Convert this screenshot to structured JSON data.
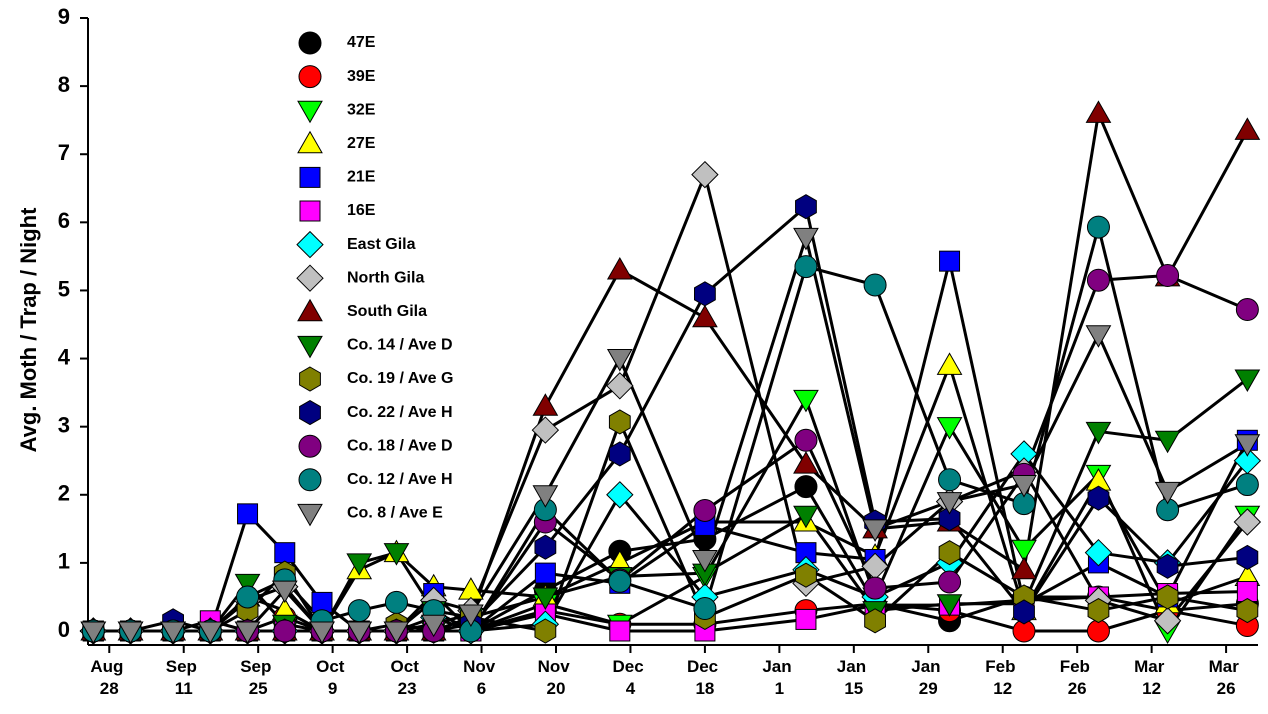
{
  "chart_data": {
    "type": "line",
    "ylabel": "Avg. Moth / Trap / Night",
    "x": [
      -3,
      4,
      12,
      19,
      26,
      33,
      40,
      47,
      54,
      61,
      68,
      82,
      96,
      112,
      131,
      144,
      158,
      172,
      186,
      199,
      214
    ],
    "xlim": [
      -4,
      216
    ],
    "xticks": [
      {
        "value": 0,
        "label": "Aug 28"
      },
      {
        "value": 14,
        "label": "Sep 11"
      },
      {
        "value": 28,
        "label": "Sep 25"
      },
      {
        "value": 42,
        "label": "Oct 9"
      },
      {
        "value": 56,
        "label": "Oct 23"
      },
      {
        "value": 70,
        "label": "Nov 6"
      },
      {
        "value": 84,
        "label": "Nov 20"
      },
      {
        "value": 98,
        "label": "Dec 4"
      },
      {
        "value": 112,
        "label": "Dec 18"
      },
      {
        "value": 126,
        "label": "Jan 1"
      },
      {
        "value": 140,
        "label": "Jan 15"
      },
      {
        "value": 154,
        "label": "Jan 29"
      },
      {
        "value": 168,
        "label": "Feb 12"
      },
      {
        "value": 182,
        "label": "Feb 26"
      },
      {
        "value": 196,
        "label": "Mar 12"
      },
      {
        "value": 210,
        "label": "Mar 26"
      }
    ],
    "ylim": [
      0,
      9
    ],
    "yticks": [
      0,
      1,
      2,
      3,
      4,
      5,
      6,
      7,
      8,
      9
    ],
    "line_color": "#000000",
    "series": [
      {
        "name": "47E",
        "color": "#000000",
        "marker": "circle",
        "values": [
          0,
          0,
          0,
          0,
          0,
          0,
          0,
          0,
          0,
          0,
          0,
          0.6,
          1.17,
          1.35,
          2.12,
          0.4,
          0.15,
          0.5,
          0.5,
          0.3,
          0.4
        ]
      },
      {
        "name": "39E",
        "color": "#ff0000",
        "marker": "circle",
        "values": [
          0,
          0,
          0,
          0,
          0,
          0.2,
          0,
          0,
          0,
          0,
          0,
          0.3,
          0.1,
          0.1,
          0.3,
          0.4,
          0.3,
          0,
          0,
          0.3,
          0.08
        ]
      },
      {
        "name": "32E",
        "color": "#00ff00",
        "marker": "triangle-down",
        "values": [
          0,
          0,
          0,
          0,
          0,
          0,
          0,
          0,
          0,
          0,
          0,
          0.4,
          0.1,
          0.8,
          3.4,
          0.5,
          3.0,
          1.2,
          2.3,
          0,
          1.7
        ]
      },
      {
        "name": "27E",
        "color": "#ffff00",
        "marker": "triangle-up",
        "values": [
          0,
          0,
          0,
          0,
          0.5,
          0.3,
          0,
          0.9,
          1.15,
          0.65,
          0.6,
          0.5,
          1.0,
          1.6,
          1.6,
          1.1,
          3.9,
          0.3,
          2.2,
          0.4,
          0.8
        ]
      },
      {
        "name": "21E",
        "color": "#0000ff",
        "marker": "square",
        "values": [
          0,
          0,
          0,
          0,
          1.72,
          1.15,
          0.42,
          0,
          0,
          0.55,
          0,
          0.85,
          0.7,
          1.55,
          1.15,
          1.05,
          5.43,
          0.4,
          1.0,
          0.5,
          2.8
        ]
      },
      {
        "name": "16E",
        "color": "#ff00ff",
        "marker": "square",
        "values": [
          0,
          0,
          0,
          0.15,
          0,
          0,
          0,
          0,
          0,
          0,
          0,
          0.25,
          0,
          0,
          0.17,
          0.38,
          0.38,
          0.45,
          0.5,
          0.55,
          0.58
        ]
      },
      {
        "name": "East Gila",
        "color": "#00ffff",
        "marker": "diamond",
        "values": [
          0,
          0,
          0,
          0,
          0,
          0,
          0,
          0,
          0,
          0.2,
          0,
          0.1,
          2.0,
          0.5,
          0.9,
          0.5,
          1.0,
          2.6,
          1.15,
          1.0,
          2.5
        ]
      },
      {
        "name": "North Gila",
        "color": "#c0c0c0",
        "marker": "diamond",
        "values": [
          0,
          0,
          0,
          0,
          0.45,
          0.65,
          0,
          0,
          0,
          0.45,
          0.3,
          2.95,
          3.6,
          6.7,
          0.7,
          0.95,
          1.9,
          2.35,
          0.45,
          0.15,
          1.6
        ]
      },
      {
        "name": "South Gila",
        "color": "#800000",
        "marker": "triangle-up",
        "values": [
          0,
          0,
          0,
          0,
          0,
          0,
          0,
          0,
          0,
          0,
          0.2,
          3.3,
          5.3,
          4.6,
          2.45,
          1.5,
          1.6,
          0.9,
          7.6,
          5.2,
          7.35
        ]
      },
      {
        "name": "Co. 14 / Ave D",
        "color": "#008000",
        "marker": "triangle-down",
        "values": [
          0,
          0,
          0,
          0,
          0.7,
          0.1,
          0,
          1.0,
          1.15,
          0.3,
          0.2,
          0.5,
          0.8,
          0.85,
          1.7,
          0.3,
          0.4,
          0.4,
          2.93,
          2.8,
          3.7
        ]
      },
      {
        "name": "Co. 19 / Ave G",
        "color": "#808000",
        "marker": "hexagon",
        "values": [
          0,
          0,
          0,
          0,
          0.3,
          0.85,
          0,
          0,
          0.1,
          0,
          0.2,
          0,
          3.07,
          0.2,
          0.82,
          0.15,
          1.15,
          0.5,
          0.3,
          0.5,
          0.3
        ]
      },
      {
        "name": "Co. 22 / Ave H",
        "color": "#000080",
        "marker": "hexagon",
        "values": [
          0,
          0,
          0.15,
          0,
          0,
          0,
          0,
          0,
          0,
          0,
          0.1,
          1.23,
          2.6,
          4.95,
          6.23,
          1.6,
          1.65,
          0.28,
          1.95,
          0.95,
          1.08
        ]
      },
      {
        "name": "Co. 18 / Ave D",
        "color": "#800080",
        "marker": "circle",
        "values": [
          0,
          0,
          0,
          0,
          0,
          0,
          0,
          0,
          0,
          0,
          0,
          1.6,
          0.75,
          1.77,
          2.8,
          0.63,
          0.72,
          2.3,
          5.15,
          5.22,
          4.72
        ]
      },
      {
        "name": "Co. 12 / Ave H",
        "color": "#008080",
        "marker": "circle",
        "values": [
          0,
          0,
          0,
          0,
          0.5,
          0.75,
          0.15,
          0.3,
          0.42,
          0.3,
          0,
          1.78,
          0.73,
          0.33,
          5.35,
          5.08,
          2.22,
          1.87,
          5.93,
          1.78,
          2.15
        ]
      },
      {
        "name": "Co. 8 / Ave E",
        "color": "#808080",
        "marker": "triangle-down",
        "values": [
          0,
          0,
          0,
          0,
          0,
          0.6,
          0,
          0,
          0,
          0.1,
          0.25,
          2.0,
          4.0,
          1.05,
          5.78,
          1.5,
          1.9,
          2.15,
          4.35,
          2.05,
          2.75
        ]
      }
    ]
  }
}
